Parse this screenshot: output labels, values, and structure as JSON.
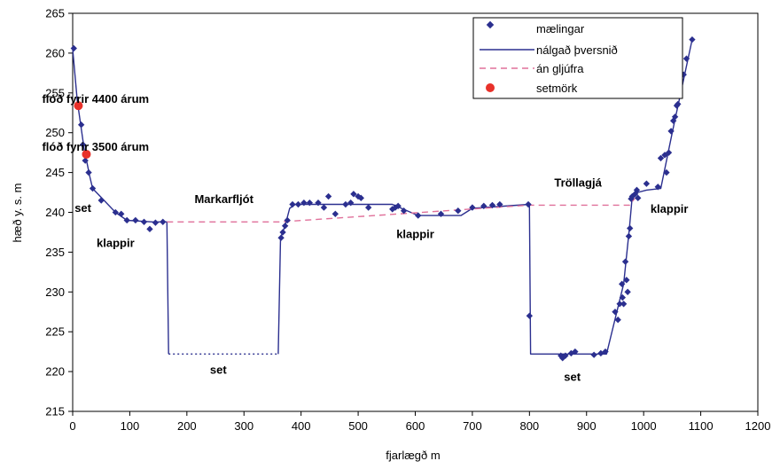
{
  "chart_data": {
    "type": "scatter",
    "xlabel": "fjarlægð m",
    "ylabel": "hæð y. s. m",
    "xlim": [
      0,
      1200
    ],
    "ylim": [
      215,
      265
    ],
    "xticks": [
      0,
      100,
      200,
      300,
      400,
      500,
      600,
      700,
      800,
      900,
      1000,
      1100,
      1200
    ],
    "yticks": [
      215,
      220,
      225,
      230,
      235,
      240,
      245,
      250,
      255,
      260,
      265
    ],
    "grid": false,
    "legend_position": "top-right",
    "legend": [
      {
        "key": "measurements",
        "label": "mælingar"
      },
      {
        "key": "profile",
        "label": "nálgað þversnið"
      },
      {
        "key": "no_gorge",
        "label": "án gljúfra"
      },
      {
        "key": "sediment_boundary",
        "label": "setmörk"
      }
    ],
    "colors": {
      "measurements": "#2b2f8f",
      "profile": "#2b2f8f",
      "no_gorge": "#e0709a",
      "sediment_boundary": "#e8312a",
      "sediment_bottom": "#2b2f8f"
    },
    "series": [
      {
        "name": "mælingar",
        "kind": "points",
        "points": [
          [
            2,
            260.6
          ],
          [
            15,
            251
          ],
          [
            18,
            248.5
          ],
          [
            22,
            246.5
          ],
          [
            28,
            245
          ],
          [
            35,
            243
          ],
          [
            50,
            241.5
          ],
          [
            75,
            240
          ],
          [
            85,
            239.8
          ],
          [
            95,
            239
          ],
          [
            110,
            239
          ],
          [
            125,
            238.8
          ],
          [
            135,
            237.9
          ],
          [
            145,
            238.7
          ],
          [
            158,
            238.8
          ],
          [
            365,
            236.8
          ],
          [
            368,
            237.5
          ],
          [
            372,
            238.3
          ],
          [
            376,
            239
          ],
          [
            385,
            241
          ],
          [
            395,
            241
          ],
          [
            405,
            241.2
          ],
          [
            415,
            241.2
          ],
          [
            430,
            241.2
          ],
          [
            440,
            240.6
          ],
          [
            448,
            242
          ],
          [
            460,
            239.8
          ],
          [
            478,
            241
          ],
          [
            487,
            241.2
          ],
          [
            492,
            242.3
          ],
          [
            500,
            242
          ],
          [
            505,
            241.8
          ],
          [
            518,
            240.6
          ],
          [
            560,
            240.4
          ],
          [
            565,
            240.6
          ],
          [
            570,
            240.8
          ],
          [
            580,
            240.2
          ],
          [
            605,
            239.6
          ],
          [
            645,
            239.8
          ],
          [
            675,
            240.2
          ],
          [
            700,
            240.6
          ],
          [
            720,
            240.8
          ],
          [
            735,
            240.9
          ],
          [
            748,
            241
          ],
          [
            798,
            241
          ],
          [
            800,
            227
          ],
          [
            855,
            222
          ],
          [
            858,
            221.7
          ],
          [
            863,
            222
          ],
          [
            873,
            222.3
          ],
          [
            880,
            222.5
          ],
          [
            913,
            222.1
          ],
          [
            925,
            222.3
          ],
          [
            933,
            222.5
          ],
          [
            950,
            227.5
          ],
          [
            955,
            226.5
          ],
          [
            958,
            228.5
          ],
          [
            962,
            231
          ],
          [
            963,
            229.3
          ],
          [
            965,
            228.5
          ],
          [
            968,
            233.8
          ],
          [
            970,
            231.5
          ],
          [
            972,
            230
          ],
          [
            974,
            237
          ],
          [
            976,
            238
          ],
          [
            978,
            241.7
          ],
          [
            980,
            242
          ],
          [
            985,
            242.3
          ],
          [
            988,
            242.8
          ],
          [
            990,
            241.8
          ],
          [
            1005,
            243.6
          ],
          [
            1025,
            243.2
          ],
          [
            1030,
            246.8
          ],
          [
            1037,
            247.2
          ],
          [
            1040,
            245
          ],
          [
            1044,
            247.5
          ],
          [
            1048,
            250.2
          ],
          [
            1052,
            251.5
          ],
          [
            1055,
            252
          ],
          [
            1058,
            253.4
          ],
          [
            1060,
            253.6
          ],
          [
            1063,
            255.4
          ],
          [
            1070,
            257.3
          ],
          [
            1075,
            259.3
          ],
          [
            1085,
            261.7
          ]
        ]
      },
      {
        "name": "nálgað þversnið",
        "kind": "line",
        "segments": [
          [
            [
              0,
              260.5
            ],
            [
              8,
              254
            ],
            [
              20,
              248
            ],
            [
              30,
              244.5
            ],
            [
              35,
              243
            ],
            [
              55,
              241.5
            ],
            [
              75,
              240
            ],
            [
              95,
              239
            ],
            [
              140,
              238.8
            ],
            [
              165,
              238.8
            ],
            [
              168,
              222.2
            ]
          ],
          [
            [
              360,
              222.2
            ],
            [
              364,
              236.8
            ],
            [
              372,
              238.3
            ],
            [
              380,
              240.5
            ],
            [
              390,
              241
            ],
            [
              560,
              241
            ],
            [
              605,
              239.6
            ],
            [
              680,
              239.6
            ],
            [
              700,
              240.5
            ],
            [
              800,
              241
            ],
            [
              802,
              222.2
            ],
            [
              860,
              222.2
            ],
            [
              935,
              222.2
            ],
            [
              965,
              231
            ],
            [
              975,
              238
            ],
            [
              980,
              242
            ],
            [
              990,
              242.5
            ],
            [
              1005,
              242.8
            ],
            [
              1030,
              243
            ],
            [
              1050,
              250
            ],
            [
              1065,
              255
            ],
            [
              1085,
              261.7
            ]
          ]
        ]
      },
      {
        "name": "án gljúfra",
        "kind": "dashed-line",
        "points": [
          [
            165,
            238.8
          ],
          [
            362,
            238.8
          ],
          [
            800,
            240.9
          ],
          [
            975,
            240.9
          ],
          [
            985,
            241.8
          ]
        ]
      },
      {
        "name": "setmörk",
        "kind": "points",
        "points": [
          [
            10,
            253.4
          ],
          [
            24,
            247.3
          ]
        ]
      },
      {
        "name": "set-bottom",
        "kind": "dotted-line",
        "points": [
          [
            168,
            222.2
          ],
          [
            360,
            222.2
          ]
        ]
      }
    ],
    "annotations": [
      {
        "key": "floed_4400",
        "text": "flóð fyrir 4400 árum",
        "x": 40,
        "y": 254.3
      },
      {
        "key": "floed_3500",
        "text": "flóð fyrir 3500 árum",
        "x": 40,
        "y": 248.3
      },
      {
        "key": "set_left",
        "text": "set",
        "x": 18,
        "y": 240.6
      },
      {
        "key": "klappir_left",
        "text": "klappir",
        "x": 75,
        "y": 236.2
      },
      {
        "key": "markarfljot",
        "text": "Markarfljót",
        "x": 265,
        "y": 241.7
      },
      {
        "key": "set_mid",
        "text": "set",
        "x": 255,
        "y": 220.3
      },
      {
        "key": "klappir_mid",
        "text": "klappir",
        "x": 600,
        "y": 237.3
      },
      {
        "key": "trollagja",
        "text": "Tröllagjá",
        "x": 885,
        "y": 243.8
      },
      {
        "key": "klappir_right",
        "text": "klappir",
        "x": 1045,
        "y": 240.5
      },
      {
        "key": "set_right",
        "text": "set",
        "x": 875,
        "y": 219.4
      }
    ]
  }
}
